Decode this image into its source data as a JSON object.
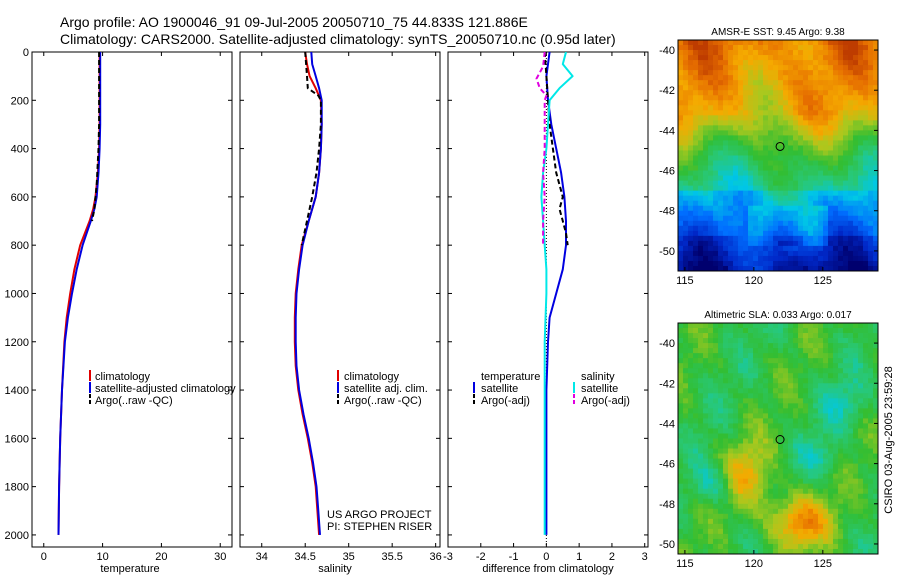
{
  "header": {
    "title_line1": "Argo profile: AO 1900046_91 09-Jul-2005 20050710_75 44.833S 121.886E",
    "title_line2": "Climatology: CARS2000. Satellite-adjusted climatology: synTS_20050710.nc (0.95d later)"
  },
  "side_label": "CSIRO 03-Aug-2005 23:59:28",
  "colors": {
    "red": "#e00000",
    "blue": "#0000e0",
    "black": "#000000",
    "cyan": "#00e8e8",
    "magenta": "#e000e0"
  },
  "chart_data": [
    {
      "type": "line",
      "id": "temperature",
      "xlabel": "temperature",
      "xlim": [
        -2,
        32
      ],
      "ylim": [
        2050,
        0
      ],
      "xticks": [
        "0",
        "10",
        "20",
        "30"
      ],
      "xtick_values": [
        0,
        10,
        20,
        30
      ],
      "yticks": [
        "0",
        "200",
        "400",
        "600",
        "800",
        "1000",
        "1200",
        "1400",
        "1600",
        "1800",
        "2000"
      ],
      "ytick_values": [
        0,
        200,
        400,
        600,
        800,
        1000,
        1200,
        1400,
        1600,
        1800,
        2000
      ],
      "legend": [
        "climatology",
        "satellite-adjusted climatology",
        "Argo(..raw -QC)"
      ],
      "series": [
        {
          "name": "climatology",
          "style": "red",
          "depth": [
            0,
            100,
            200,
            300,
            400,
            500,
            600,
            650,
            700,
            750,
            800,
            900,
            1000,
            1100,
            1200,
            1400,
            1600,
            1800,
            2000
          ],
          "values": [
            9.5,
            9.5,
            9.5,
            9.5,
            9.4,
            9.2,
            8.8,
            8.4,
            7.8,
            7.0,
            6.2,
            5.2,
            4.5,
            3.9,
            3.5,
            3.1,
            2.8,
            2.6,
            2.5
          ]
        },
        {
          "name": "satellite-adjusted climatology",
          "style": "blue",
          "depth": [
            0,
            100,
            200,
            300,
            400,
            500,
            600,
            650,
            700,
            750,
            800,
            900,
            1000,
            1100,
            1200,
            1400,
            1600,
            1800,
            2000
          ],
          "values": [
            9.6,
            9.6,
            9.6,
            9.6,
            9.5,
            9.3,
            9.0,
            8.6,
            8.0,
            7.3,
            6.6,
            5.6,
            4.8,
            4.1,
            3.6,
            3.1,
            2.8,
            2.6,
            2.5
          ]
        },
        {
          "name": "Argo(..raw -QC)",
          "style": "black-dash",
          "depth": [
            0,
            100,
            200,
            300,
            400,
            500,
            550,
            600,
            650,
            700
          ],
          "values": [
            9.4,
            9.4,
            9.4,
            9.4,
            9.3,
            9.1,
            9.0,
            8.8,
            8.6,
            8.2
          ]
        }
      ]
    },
    {
      "type": "line",
      "id": "salinity",
      "xlabel": "salinity",
      "xlim": [
        33.75,
        36.05
      ],
      "ylim": [
        2050,
        0
      ],
      "xticks": [
        "34",
        "34.5",
        "35",
        "35.5",
        "36"
      ],
      "xtick_values": [
        34,
        34.5,
        35,
        35.5,
        36
      ],
      "legend": [
        "climatology",
        "satellite adj. clim.",
        "Argo(..raw -QC)"
      ],
      "annotation": [
        "US ARGO PROJECT",
        "PI: STEPHEN RISER"
      ],
      "series": [
        {
          "name": "climatology",
          "style": "red",
          "depth": [
            0,
            50,
            100,
            150,
            200,
            300,
            400,
            500,
            600,
            700,
            800,
            900,
            1000,
            1100,
            1200,
            1300,
            1400,
            1500,
            1600,
            1700,
            1800,
            1900,
            2000
          ],
          "values": [
            34.5,
            34.52,
            34.55,
            34.62,
            34.68,
            34.69,
            34.68,
            34.66,
            34.62,
            34.54,
            34.46,
            34.42,
            34.39,
            34.38,
            34.38,
            34.39,
            34.42,
            34.47,
            34.53,
            34.58,
            34.62,
            34.64,
            34.66
          ]
        },
        {
          "name": "satellite adj. clim.",
          "style": "blue",
          "depth": [
            0,
            50,
            100,
            150,
            200,
            300,
            400,
            500,
            600,
            700,
            800,
            900,
            1000,
            1100,
            1200,
            1300,
            1400,
            1500,
            1600,
            1700,
            1800,
            1900,
            2000
          ],
          "values": [
            34.57,
            34.58,
            34.62,
            34.66,
            34.69,
            34.69,
            34.68,
            34.66,
            34.62,
            34.54,
            34.47,
            34.43,
            34.4,
            34.39,
            34.39,
            34.4,
            34.43,
            34.48,
            34.54,
            34.59,
            34.63,
            34.65,
            34.67
          ]
        },
        {
          "name": "Argo(..raw -QC)",
          "style": "black-dash",
          "depth": [
            0,
            50,
            100,
            150,
            180,
            200,
            300,
            400,
            500,
            600,
            700,
            800
          ],
          "values": [
            34.5,
            34.51,
            34.52,
            34.53,
            34.65,
            34.68,
            34.68,
            34.66,
            34.63,
            34.58,
            34.52,
            34.46
          ]
        }
      ]
    },
    {
      "type": "line",
      "id": "difference",
      "xlabel": "difference from climatology",
      "xlim": [
        -3,
        3.1
      ],
      "ylim": [
        2050,
        0
      ],
      "xticks": [
        "-3",
        "-2",
        "-1",
        "0",
        "1",
        "2",
        "3"
      ],
      "xtick_values": [
        -3,
        -2,
        -1,
        0,
        1,
        2,
        3
      ],
      "legend_left_title": "temperature",
      "legend_left": [
        "satellite",
        "Argo(-adj)"
      ],
      "legend_right_title": "salinity",
      "legend_right": [
        "satellite",
        "Argo(-adj)"
      ],
      "series": [
        {
          "name": "temperature satellite",
          "style": "blue",
          "depth": [
            0,
            100,
            200,
            300,
            400,
            500,
            600,
            700,
            800,
            900,
            1000,
            1100,
            1200,
            1400,
            1600,
            1800,
            2000
          ],
          "values": [
            0.1,
            0.0,
            0.05,
            0.15,
            0.3,
            0.45,
            0.55,
            0.6,
            0.6,
            0.5,
            0.3,
            0.1,
            0.05,
            0.0,
            0.0,
            0.0,
            0.0
          ]
        },
        {
          "name": "temperature Argo(-adj)",
          "style": "black-dash",
          "depth": [
            0,
            100,
            200,
            300,
            400,
            500,
            600,
            650,
            700,
            750,
            800
          ],
          "values": [
            -0.05,
            0.0,
            0.05,
            0.1,
            0.2,
            0.3,
            0.5,
            0.4,
            0.5,
            0.6,
            0.65
          ]
        },
        {
          "name": "salinity satellite",
          "style": "cyan",
          "depth": [
            0,
            50,
            100,
            150,
            200,
            300,
            400,
            500,
            600,
            700,
            800,
            900,
            1000,
            1200,
            1400,
            1600,
            1800,
            2000
          ],
          "values": [
            0.6,
            0.5,
            0.8,
            0.4,
            0.1,
            0.05,
            0.0,
            -0.1,
            -0.15,
            -0.1,
            -0.05,
            0.0,
            0.0,
            -0.05,
            -0.05,
            -0.05,
            -0.05,
            -0.05
          ]
        },
        {
          "name": "salinity Argo(-adj)",
          "style": "magenta-dash",
          "depth": [
            0,
            60,
            110,
            150,
            180,
            200,
            400,
            500,
            600,
            700,
            800
          ],
          "values": [
            -0.05,
            -0.1,
            -0.3,
            -0.2,
            0.0,
            -0.05,
            -0.05,
            -0.1,
            -0.05,
            -0.1,
            -0.1
          ]
        }
      ]
    },
    {
      "type": "heatmap",
      "id": "sst",
      "title": "AMSR-E SST: 9.45 Argo: 9.38",
      "xlim": [
        114.5,
        129
      ],
      "ylim": [
        -51,
        -39.5
      ],
      "xticks": [
        "115",
        "120",
        "125"
      ],
      "xtick_values": [
        115,
        120,
        125
      ],
      "yticks": [
        "-40",
        "-42",
        "-44",
        "-46",
        "-48",
        "-50"
      ],
      "ytick_values": [
        -40,
        -42,
        -44,
        -46,
        -48,
        -50
      ],
      "marker": {
        "lon": 121.9,
        "lat": -44.8
      }
    },
    {
      "type": "heatmap",
      "id": "sla",
      "title": "Altimetric SLA: 0.033 Argo: 0.017",
      "xlim": [
        114.5,
        129
      ],
      "ylim": [
        -50.5,
        -39
      ],
      "xticks": [
        "115",
        "120",
        "125"
      ],
      "xtick_values": [
        115,
        120,
        125
      ],
      "yticks": [
        "-40",
        "-42",
        "-44",
        "-46",
        "-48",
        "-50"
      ],
      "ytick_values": [
        -40,
        -42,
        -44,
        -46,
        -48,
        -50
      ],
      "marker": {
        "lon": 121.9,
        "lat": -44.8
      }
    }
  ]
}
